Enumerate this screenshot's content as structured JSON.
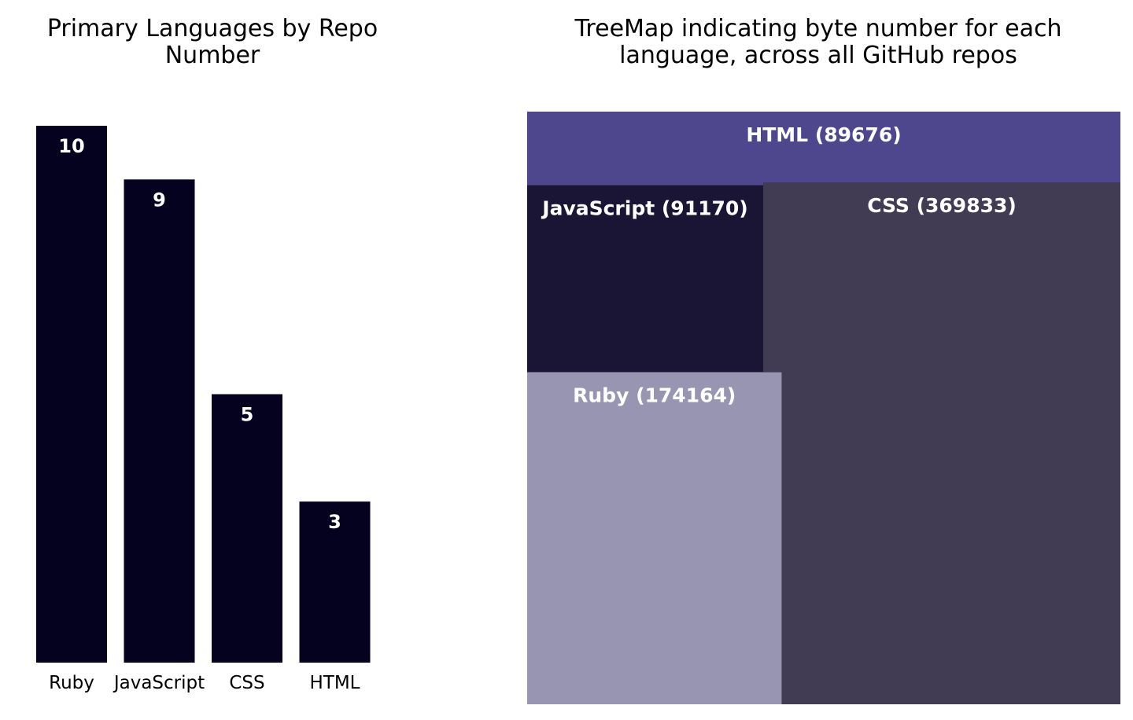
{
  "chart_data": [
    {
      "type": "bar",
      "title": "Primary Languages by Repo\nNumber",
      "categories": [
        "Ruby",
        "JavaScript",
        "CSS",
        "HTML"
      ],
      "values": [
        10,
        9,
        5,
        3
      ],
      "ylim": [
        0,
        10
      ],
      "grid": false,
      "legend": "none",
      "bar_color": "#05021f"
    },
    {
      "type": "treemap",
      "title": "TreeMap indicating byte number for each\nlanguage, across all GitHub repos",
      "items": [
        {
          "name": "HTML",
          "value": 89676,
          "label": "HTML (89676)",
          "color": "#4f478e"
        },
        {
          "name": "JavaScript",
          "value": 91170,
          "label": "JavaScript (91170)",
          "color": "#1a1535"
        },
        {
          "name": "CSS",
          "value": 369833,
          "label": "CSS (369833)",
          "color": "#413c53"
        },
        {
          "name": "Ruby",
          "value": 174164,
          "label": "Ruby (174164)",
          "color": "#9895b2"
        }
      ]
    }
  ]
}
